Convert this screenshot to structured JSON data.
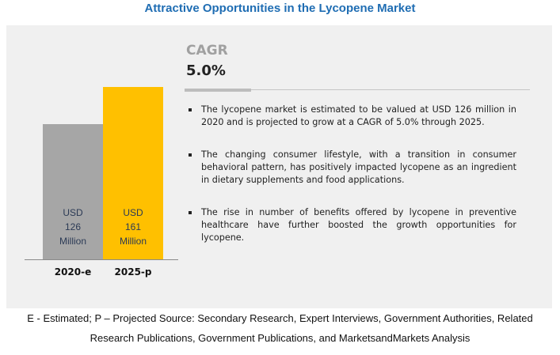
{
  "title": "Attractive Opportunities in the Lycopene Market",
  "cagr": {
    "label": "CAGR",
    "value": "5.0%"
  },
  "bullets": [
    "The lycopene market is estimated to be valued at USD 126 million in 2020 and is projected to grow at a CAGR of 5.0% through 2025.",
    "The changing consumer lifestyle, with a transition in consumer behavioral pattern, has positively impacted lycopene as an ingredient in dietary supplements and food applications.",
    "The rise in number of benefits offered by lycopene in preventive healthcare have further boosted the growth opportunities for lycopene."
  ],
  "footer": {
    "line1": "E - Estimated; P – Projected Source: Secondary Research, Expert Interviews, Government Authorities, Related",
    "line2": "Research Publications, Government Publications, and MarketsandMarkets Analysis"
  },
  "chart_data": {
    "type": "bar",
    "title": "Attractive Opportunities in the Lycopene Market",
    "categories": [
      "2020-e",
      "2025-p"
    ],
    "values": [
      126,
      161
    ],
    "unit": "USD Million",
    "data_labels": [
      {
        "line1": "USD",
        "line2": "126",
        "line3": "Million"
      },
      {
        "line1": "USD",
        "line2": "161",
        "line3": "Million"
      }
    ],
    "colors": [
      "#a6a6a6",
      "#ffc000"
    ],
    "xlabel": "",
    "ylabel": "",
    "ylim": [
      0,
      161
    ],
    "grid": false,
    "legend": "none"
  }
}
